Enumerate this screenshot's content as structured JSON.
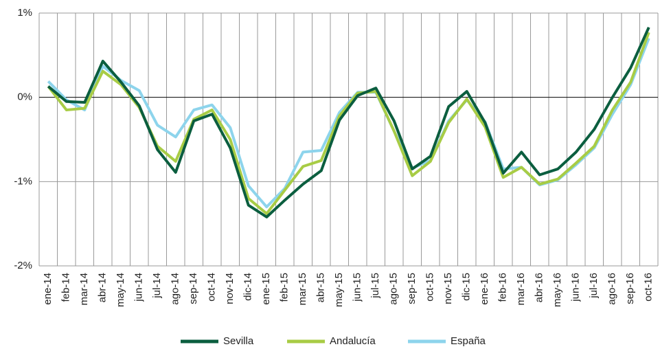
{
  "chart_data": {
    "type": "line",
    "categories": [
      "ene-14",
      "feb-14",
      "mar-14",
      "abr-14",
      "may-14",
      "jun-14",
      "jul-14",
      "ago-14",
      "sep-14",
      "oct-14",
      "nov-14",
      "dic-14",
      "ene-15",
      "feb-15",
      "mar-15",
      "abr-15",
      "may-15",
      "jun-15",
      "jul-15",
      "ago-15",
      "sep-15",
      "oct-15",
      "nov-15",
      "dic-15",
      "ene-16",
      "feb-16",
      "mar-16",
      "abr-16",
      "may-16",
      "jun-16",
      "jul-16",
      "ago-16",
      "sep-16",
      "oct-16"
    ],
    "series": [
      {
        "name": "Sevilla",
        "color": "#0b5e3f",
        "values": [
          0.13,
          -0.05,
          -0.06,
          0.43,
          0.18,
          -0.1,
          -0.62,
          -0.89,
          -0.28,
          -0.2,
          -0.6,
          -1.28,
          -1.42,
          -1.22,
          -1.03,
          -0.87,
          -0.27,
          0.02,
          0.11,
          -0.28,
          -0.85,
          -0.7,
          -0.11,
          0.07,
          -0.3,
          -0.9,
          -0.65,
          -0.92,
          -0.85,
          -0.65,
          -0.38,
          0.0,
          0.35,
          0.83
        ]
      },
      {
        "name": "Andalucía",
        "color": "#a8cc45",
        "values": [
          0.13,
          -0.15,
          -0.13,
          0.31,
          0.15,
          -0.12,
          -0.58,
          -0.76,
          -0.26,
          -0.15,
          -0.5,
          -1.2,
          -1.38,
          -1.1,
          -0.82,
          -0.75,
          -0.22,
          0.05,
          0.07,
          -0.4,
          -0.93,
          -0.76,
          -0.3,
          -0.02,
          -0.35,
          -0.95,
          -0.83,
          -1.03,
          -0.97,
          -0.78,
          -0.58,
          -0.15,
          0.18,
          0.77
        ]
      },
      {
        "name": "España",
        "color": "#8dd4ec",
        "values": [
          0.19,
          -0.03,
          -0.15,
          0.37,
          0.2,
          0.08,
          -0.33,
          -0.47,
          -0.15,
          -0.09,
          -0.36,
          -1.05,
          -1.3,
          -1.08,
          -0.65,
          -0.63,
          -0.18,
          0.06,
          0.06,
          -0.4,
          -0.84,
          -0.75,
          -0.28,
          -0.03,
          -0.29,
          -0.85,
          -0.83,
          -1.04,
          -0.98,
          -0.8,
          -0.6,
          -0.2,
          0.15,
          0.7
        ]
      }
    ],
    "ylim": [
      -2,
      1
    ],
    "yticks": [
      {
        "value": 1,
        "label": "1%"
      },
      {
        "value": 0,
        "label": "0%"
      },
      {
        "value": -1,
        "label": "-1%"
      },
      {
        "value": -2,
        "label": "-2%"
      }
    ],
    "grid": true,
    "legend": "bottom"
  }
}
